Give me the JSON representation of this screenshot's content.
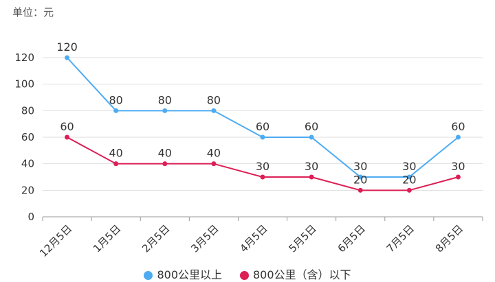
{
  "unit_label": "单位：元",
  "chart_data": {
    "type": "line",
    "categories": [
      "12月5日",
      "1月5日",
      "2月5日",
      "3月5日",
      "4月5日",
      "5月5日",
      "6月5日",
      "7月5日",
      "8月5日"
    ],
    "series": [
      {
        "name": "800公里以上",
        "color": "#4dabf2",
        "values": [
          120,
          80,
          80,
          80,
          60,
          60,
          30,
          30,
          60
        ]
      },
      {
        "name": "800公里（含）以下",
        "color": "#dd1f55",
        "values": [
          60,
          40,
          40,
          40,
          30,
          30,
          20,
          20,
          30
        ]
      }
    ],
    "ylim": [
      0,
      120
    ],
    "yticks": [
      0,
      20,
      40,
      60,
      80,
      100,
      120
    ],
    "grid": true,
    "legend": "bottom"
  }
}
